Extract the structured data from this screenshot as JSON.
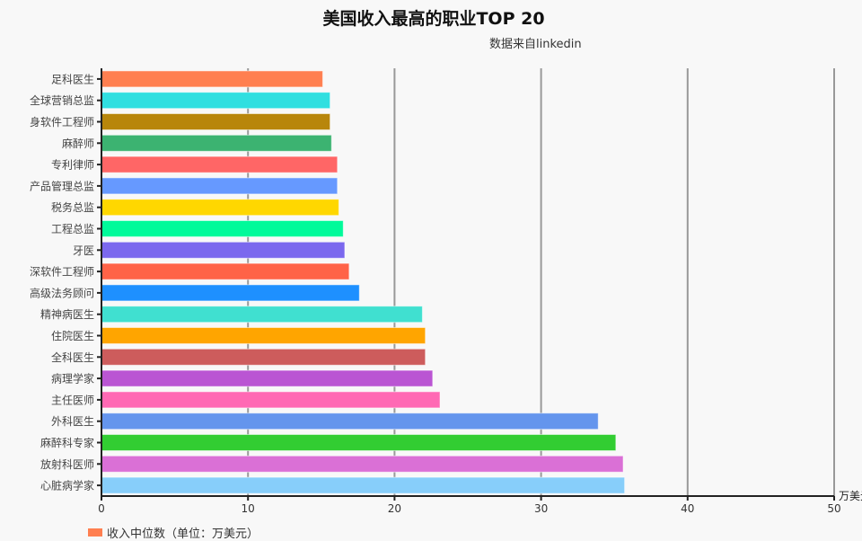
{
  "chart_data": {
    "type": "bar",
    "orientation": "horizontal",
    "title": "美国收入最高的职业TOP 20",
    "subtitle": "数据来自linkedin",
    "xlabel": "万美元",
    "xlim": [
      0,
      50
    ],
    "xticks": [
      0,
      10,
      20,
      30,
      40,
      50
    ],
    "grid": true,
    "legend": {
      "position": "bottom-left",
      "entries": [
        "收入中位数（单位：万美元）"
      ]
    },
    "categories": [
      "足科医生",
      "全球营销总监",
      "身软件工程师",
      "麻醉师",
      "专利律师",
      "产品管理总监",
      "税务总监",
      "工程总监",
      "牙医",
      "深软件工程师",
      "高级法务顾问",
      "精神病医生",
      "住院医生",
      "全科医生",
      "病理学家",
      "主任医师",
      "外科医生",
      "麻醉科专家",
      "放射科医师",
      "心脏病学家"
    ],
    "series": [
      {
        "name": "收入中位数（单位：万美元）",
        "values": [
          15.1,
          15.6,
          15.6,
          15.7,
          16.1,
          16.1,
          16.2,
          16.5,
          16.6,
          16.9,
          17.6,
          21.9,
          22.1,
          22.1,
          22.6,
          23.1,
          33.9,
          35.1,
          35.6,
          35.7
        ]
      }
    ],
    "colors": [
      "#ff7f50",
      "#30dfe0",
      "#b8860b",
      "#3cb371",
      "#ff6666",
      "#6699ff",
      "#ffd700",
      "#00fa9a",
      "#7b68ee",
      "#ff6347",
      "#1e90ff",
      "#40e0d0",
      "#ffa500",
      "#cd5c5c",
      "#ba55d3",
      "#ff69b4",
      "#6495ed",
      "#32cd32",
      "#da70d6",
      "#87cefa"
    ]
  }
}
